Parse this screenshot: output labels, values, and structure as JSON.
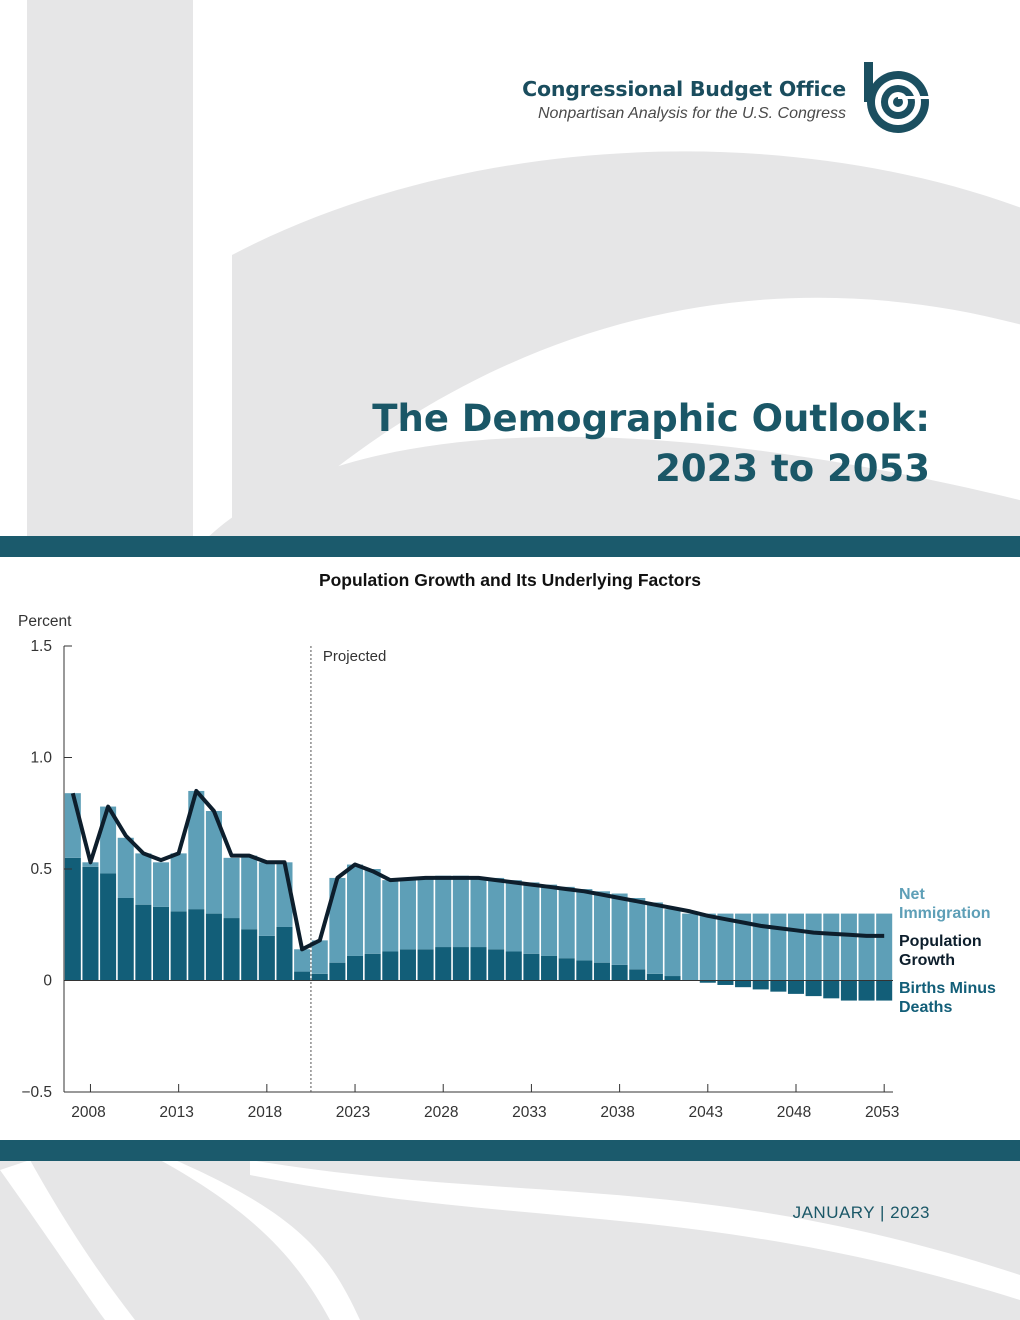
{
  "header": {
    "org_name": "Congressional Budget Office",
    "org_tagline": "Nonpartisan Analysis for the U.S. Congress",
    "logo_icon": "cbo-logo-icon"
  },
  "title": {
    "line1": "The Demographic Outlook:",
    "line2": "2023 to 2053"
  },
  "footer": {
    "date": "JANUARY | 2023"
  },
  "colors": {
    "brand_teal": "#1b5a6c",
    "net_immigration": "#5e9fb7",
    "births_minus_deaths": "#125e78",
    "population_growth": "#0d1e2c",
    "background_gray": "#e6e6e7"
  },
  "chart_data": {
    "type": "bar",
    "title": "Population Growth and Its Underlying Factors",
    "ylabel": "Percent",
    "ylim": [
      -0.5,
      1.5
    ],
    "yticks": [
      1.5,
      1.0,
      0.5,
      0,
      -0.5
    ],
    "ytick_labels": [
      "1.5",
      "1.0",
      "0.5",
      "0",
      "−0.5"
    ],
    "xticks": [
      2008,
      2013,
      2018,
      2023,
      2028,
      2033,
      2038,
      2043,
      2048,
      2053
    ],
    "xtick_labels": [
      "2008",
      "2013",
      "2018",
      "2023",
      "2028",
      "2033",
      "2038",
      "2043",
      "2048",
      "2053"
    ],
    "projected_label": "Projected",
    "projected_start_year": 2021,
    "stacked": true,
    "grid": false,
    "legend_position": "right",
    "x": [
      2007,
      2008,
      2009,
      2010,
      2011,
      2012,
      2013,
      2014,
      2015,
      2016,
      2017,
      2018,
      2019,
      2020,
      2021,
      2022,
      2023,
      2024,
      2025,
      2026,
      2027,
      2028,
      2029,
      2030,
      2031,
      2032,
      2033,
      2034,
      2035,
      2036,
      2037,
      2038,
      2039,
      2040,
      2041,
      2042,
      2043,
      2044,
      2045,
      2046,
      2047,
      2048,
      2049,
      2050,
      2051,
      2052,
      2053
    ],
    "series": [
      {
        "name": "Births Minus Deaths",
        "label": [
          "Births Minus",
          "Deaths"
        ],
        "kind": "bar",
        "values": [
          0.55,
          0.51,
          0.48,
          0.37,
          0.34,
          0.33,
          0.31,
          0.32,
          0.3,
          0.28,
          0.23,
          0.2,
          0.24,
          0.04,
          0.03,
          0.08,
          0.11,
          0.12,
          0.13,
          0.14,
          0.14,
          0.15,
          0.15,
          0.15,
          0.14,
          0.13,
          0.12,
          0.11,
          0.1,
          0.09,
          0.08,
          0.07,
          0.05,
          0.03,
          0.02,
          0.0,
          -0.01,
          -0.02,
          -0.03,
          -0.04,
          -0.05,
          -0.06,
          -0.07,
          -0.08,
          -0.09,
          -0.09,
          -0.09
        ]
      },
      {
        "name": "Net Immigration",
        "label": [
          "Net",
          "Immigration"
        ],
        "kind": "bar",
        "values": [
          0.29,
          0.02,
          0.3,
          0.27,
          0.23,
          0.2,
          0.26,
          0.53,
          0.46,
          0.27,
          0.33,
          0.33,
          0.29,
          0.1,
          0.15,
          0.38,
          0.41,
          0.38,
          0.32,
          0.32,
          0.32,
          0.32,
          0.32,
          0.31,
          0.32,
          0.32,
          0.32,
          0.32,
          0.32,
          0.32,
          0.32,
          0.32,
          0.32,
          0.32,
          0.3,
          0.3,
          0.3,
          0.3,
          0.3,
          0.3,
          0.3,
          0.3,
          0.3,
          0.3,
          0.3,
          0.3,
          0.3
        ]
      },
      {
        "name": "Population Growth",
        "label": [
          "Population",
          "Growth"
        ],
        "kind": "line",
        "values": [
          0.84,
          0.53,
          0.78,
          0.65,
          0.57,
          0.54,
          0.57,
          0.85,
          0.76,
          0.56,
          0.56,
          0.53,
          0.53,
          0.14,
          0.18,
          0.46,
          0.52,
          0.49,
          0.45,
          0.455,
          0.46,
          0.46,
          0.46,
          0.46,
          0.45,
          0.44,
          0.43,
          0.42,
          0.41,
          0.4,
          0.385,
          0.37,
          0.355,
          0.34,
          0.325,
          0.31,
          0.29,
          0.275,
          0.26,
          0.245,
          0.235,
          0.225,
          0.215,
          0.21,
          0.205,
          0.2,
          0.2
        ]
      }
    ]
  }
}
